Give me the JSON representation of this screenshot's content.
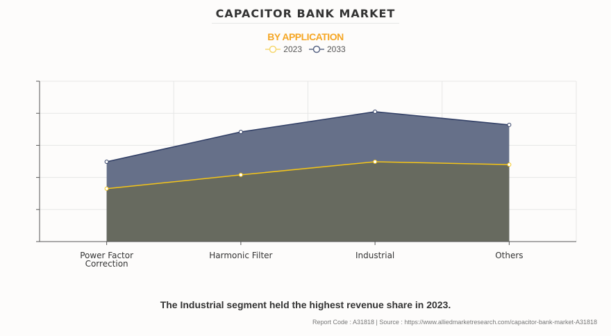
{
  "title": "CAPACITOR BANK MARKET",
  "subtitle": "BY APPLICATION",
  "footnote": "The Industrial segment held the highest revenue share in 2023.",
  "source": "Report Code : A31818  |  Source : https://www.alliedmarketresearch.com/capacitor-bank-market-A31818",
  "chart_data": {
    "type": "area",
    "categories": [
      "Power Factor Correction",
      "Harmonic Filter",
      "Industrial",
      "Others"
    ],
    "category_lines": [
      [
        "Power Factor",
        "Correction"
      ],
      [
        "Harmonic Filter"
      ],
      [
        "Industrial"
      ],
      [
        "Others"
      ]
    ],
    "series": [
      {
        "name": "2033",
        "values": [
          2.49,
          3.42,
          4.05,
          3.64
        ],
        "line_color": "#2f3d64",
        "fill_color": "#667089"
      },
      {
        "name": "2023",
        "values": [
          1.65,
          2.08,
          2.49,
          2.4
        ],
        "line_color": "#f5c518",
        "fill_color": "#676a5f"
      }
    ],
    "ylim": [
      0,
      5
    ],
    "y_tick_labels_shown": false,
    "grid": true,
    "legend_position": "top-center",
    "xlabel": "",
    "ylabel": ""
  }
}
